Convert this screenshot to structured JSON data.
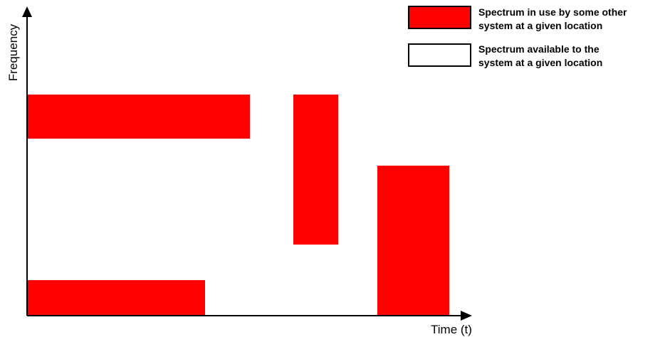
{
  "axes": {
    "y_label": "Frequency",
    "x_label": "Time (t)"
  },
  "colors": {
    "in_use": "#ff0000",
    "available": "#ffffff",
    "axis": "#000000"
  },
  "legend": [
    {
      "key": "in_use",
      "fill": "#ff0000",
      "lines": [
        "Spectrum in use by some other",
        "system at a given location"
      ]
    },
    {
      "key": "available",
      "fill": "#ffffff",
      "lines": [
        "Spectrum available to the",
        "system at a given location"
      ]
    }
  ]
}
